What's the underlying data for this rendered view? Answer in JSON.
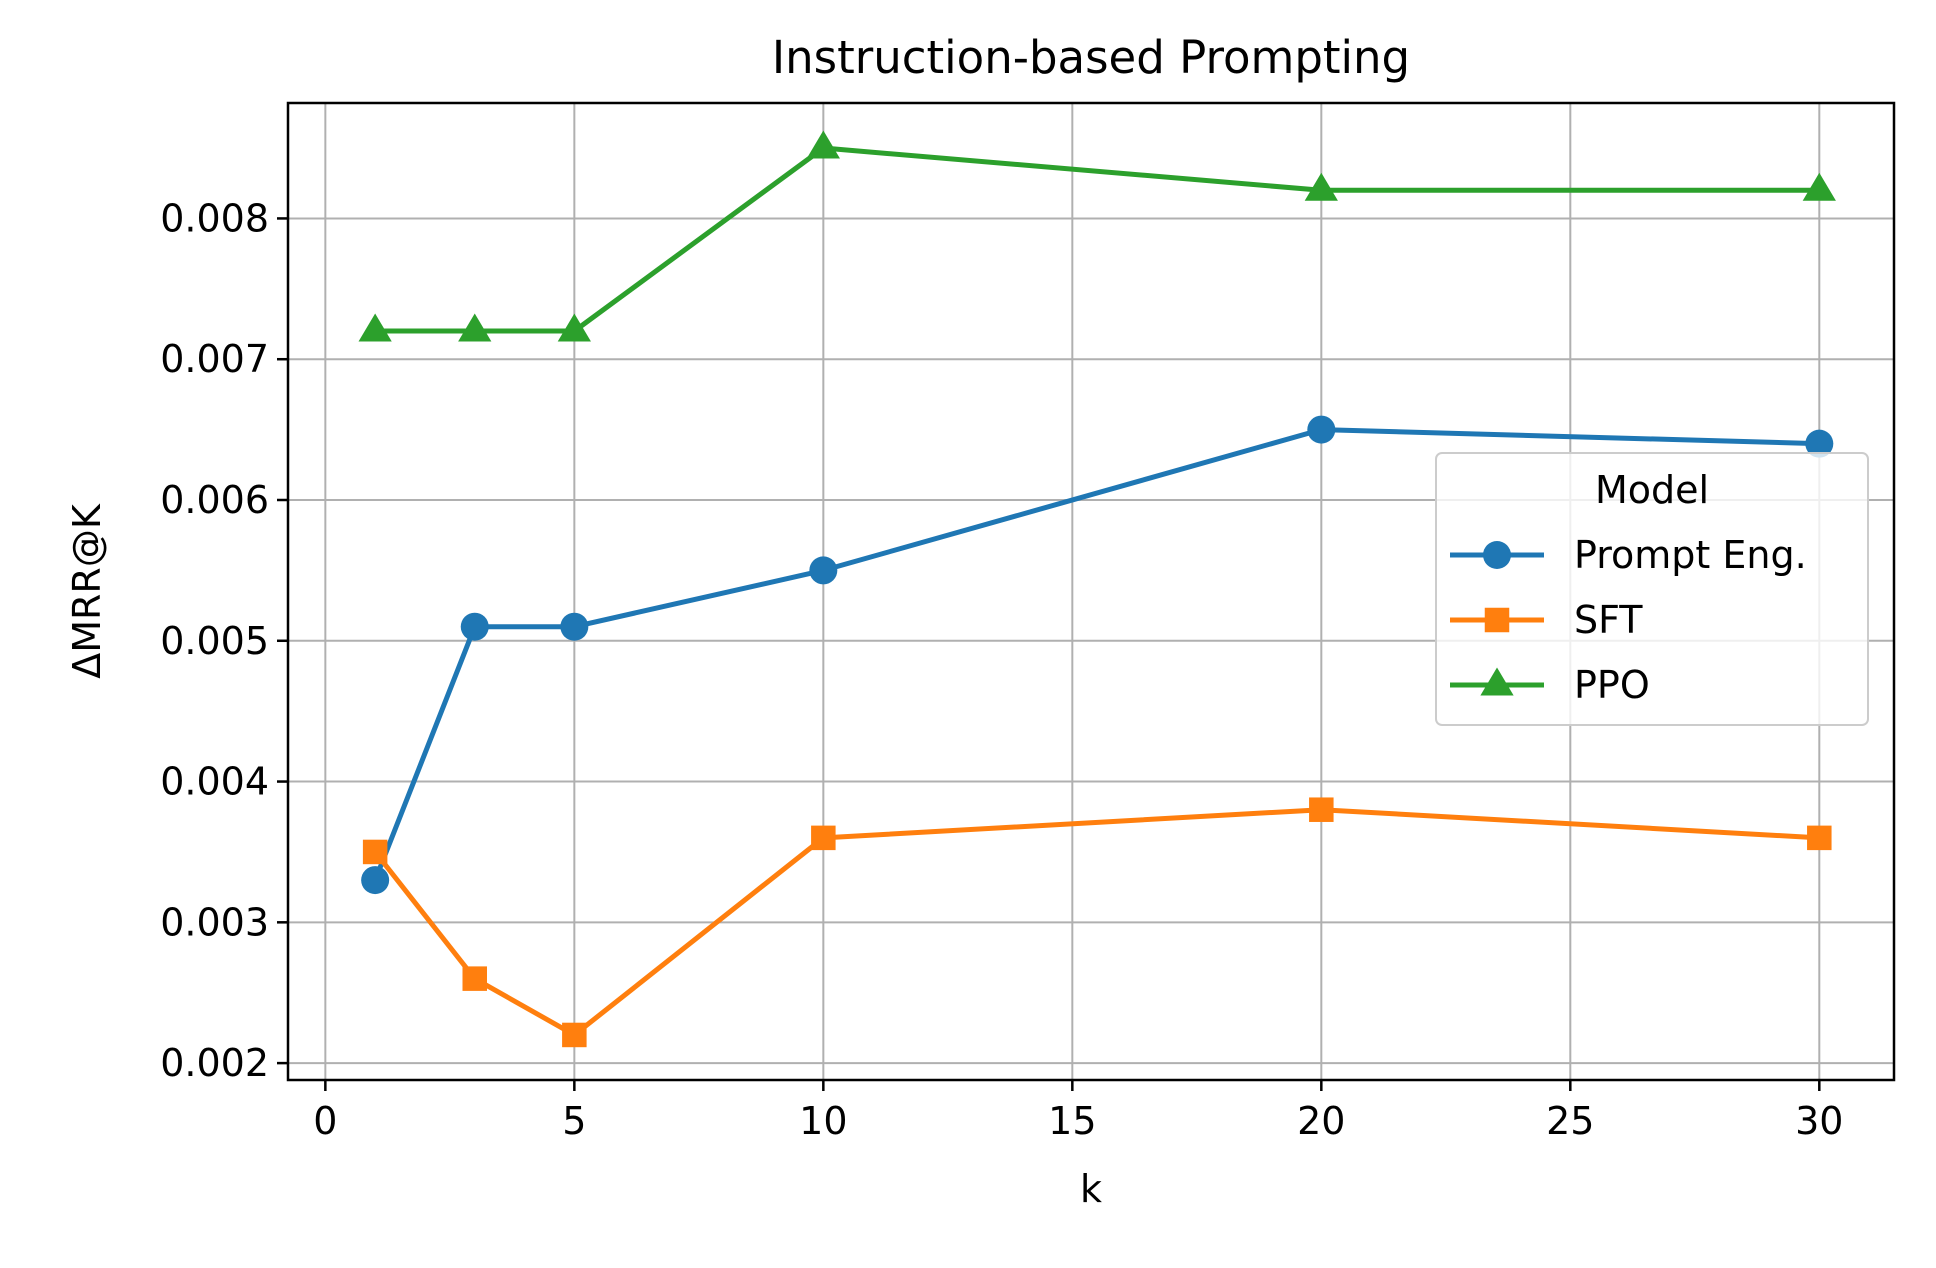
{
  "chart_data": {
    "type": "line",
    "title": "Instruction-based Prompting",
    "xlabel": "k",
    "ylabel": "ΔMRR@K",
    "xlim": [
      -0.75,
      31.5
    ],
    "ylim": [
      0.00188,
      0.00882
    ],
    "xticks": [
      0,
      5,
      10,
      15,
      20,
      25,
      30
    ],
    "xtick_labels": [
      "0",
      "5",
      "10",
      "15",
      "20",
      "25",
      "30"
    ],
    "yticks": [
      0.002,
      0.003,
      0.004,
      0.005,
      0.006,
      0.007,
      0.008
    ],
    "ytick_labels": [
      "0.002",
      "0.003",
      "0.004",
      "0.005",
      "0.006",
      "0.007",
      "0.008"
    ],
    "grid": true,
    "legend": {
      "title": "Model",
      "placement": "center-right"
    },
    "x": [
      1,
      3,
      5,
      10,
      20,
      30
    ],
    "series": [
      {
        "name": "Prompt Eng.",
        "color": "#1f77b4",
        "marker": "circle",
        "values": [
          0.0033,
          0.0051,
          0.0051,
          0.0055,
          0.0065,
          0.0064
        ]
      },
      {
        "name": "SFT",
        "color": "#ff7f0e",
        "marker": "square",
        "values": [
          0.0035,
          0.0026,
          0.0022,
          0.0036,
          0.0038,
          0.0036
        ]
      },
      {
        "name": "PPO",
        "color": "#2ca02c",
        "marker": "triangle",
        "values": [
          0.0072,
          0.0072,
          0.0072,
          0.0085,
          0.0082,
          0.0082
        ]
      }
    ]
  }
}
